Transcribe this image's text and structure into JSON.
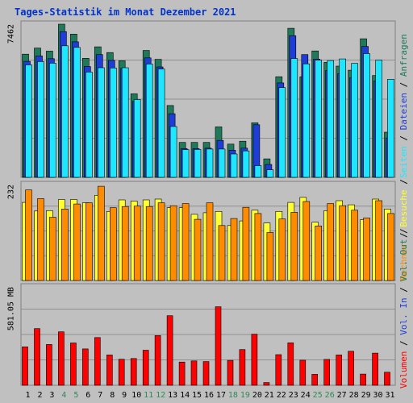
{
  "title": "Tages-Statistik im Monat Dezember 2021",
  "colors": {
    "background": "#c0c0c0",
    "title": "#0033cc",
    "anfragen": "#1f7a5a",
    "dateien": "#1e3dd6",
    "seiten": "#1ee6ff",
    "besuche": "#ffff33",
    "rechner": "#ff8c00",
    "volumen_in": "#ff1a1a",
    "volumen_out": "#ff0000",
    "weekend": "#2e8b57",
    "axis_text": "#000000"
  },
  "chart_data": [
    {
      "type": "bar",
      "panel": "top",
      "ytick_label": "7462",
      "ylim": [
        0,
        7462
      ],
      "grid": true,
      "categories": [
        "1",
        "2",
        "3",
        "4",
        "5",
        "6",
        "7",
        "8",
        "9",
        "10",
        "11",
        "12",
        "13",
        "14",
        "15",
        "16",
        "17",
        "18",
        "19",
        "20",
        "21",
        "22",
        "23",
        "24",
        "25",
        "26",
        "27",
        "28",
        "29",
        "30",
        "31"
      ],
      "series": [
        {
          "name": "Anfragen",
          "values": [
            6000,
            6300,
            6150,
            7462,
            6980,
            5800,
            6360,
            6080,
            5680,
            4070,
            6180,
            5750,
            3500,
            1700,
            1700,
            1700,
            2460,
            1620,
            1760,
            2660,
            900,
            4900,
            7260,
            4900,
            6160,
            5600,
            5420,
            5220,
            6750,
            4960,
            2200
          ]
        },
        {
          "name": "Dateien",
          "values": [
            5650,
            5920,
            5780,
            7100,
            6600,
            5400,
            5980,
            5700,
            5300,
            3700,
            5820,
            5380,
            3100,
            1400,
            1400,
            1420,
            1800,
            1320,
            1420,
            2560,
            630,
            4600,
            6900,
            5980,
            5760,
            5200,
            5050,
            4850,
            6380,
            4700,
            1920
          ]
        },
        {
          "name": "Seiten",
          "values": [
            5480,
            5640,
            5560,
            6410,
            6330,
            5130,
            5340,
            5330,
            5340,
            3790,
            5520,
            5280,
            2480,
            1350,
            1360,
            1380,
            1380,
            1140,
            1290,
            570,
            370,
            4370,
            5790,
            5530,
            5710,
            5690,
            5770,
            5550,
            6030,
            5710,
            4780
          ]
        }
      ]
    },
    {
      "type": "bar",
      "panel": "middle",
      "ytick_label": "232",
      "ylim": [
        0,
        232
      ],
      "grid": true,
      "categories": [
        "1",
        "2",
        "3",
        "4",
        "5",
        "6",
        "7",
        "8",
        "9",
        "10",
        "11",
        "12",
        "13",
        "14",
        "15",
        "16",
        "17",
        "18",
        "19",
        "20",
        "21",
        "22",
        "23",
        "24",
        "25",
        "26",
        "27",
        "28",
        "29",
        "30",
        "31"
      ],
      "series": [
        {
          "name": "Besuche",
          "values": [
            189,
            168,
            169,
            196,
            196,
            188,
            206,
            167,
            195,
            192,
            195,
            197,
            176,
            176,
            160,
            164,
            167,
            133,
            144,
            170,
            139,
            167,
            189,
            201,
            141,
            169,
            193,
            183,
            147,
            197,
            173
          ]
        },
        {
          "name": "Rechner",
          "values": [
            219,
            198,
            153,
            173,
            185,
            188,
            228,
            176,
            179,
            180,
            179,
            188,
            181,
            186,
            148,
            188,
            133,
            150,
            177,
            162,
            116,
            149,
            165,
            191,
            132,
            186,
            181,
            170,
            151,
            193,
            162
          ]
        }
      ]
    },
    {
      "type": "bar",
      "panel": "bottom",
      "ytick_label": "581.05 MB",
      "ylim": [
        0,
        581.05
      ],
      "grid": true,
      "categories": [
        "1",
        "2",
        "3",
        "4",
        "5",
        "6",
        "7",
        "8",
        "9",
        "10",
        "11",
        "12",
        "13",
        "14",
        "15",
        "16",
        "17",
        "18",
        "19",
        "20",
        "21",
        "22",
        "23",
        "24",
        "25",
        "26",
        "27",
        "28",
        "29",
        "30",
        "31"
      ],
      "series": [
        {
          "name": "Vol. In",
          "values": [
            0,
            0,
            0,
            0,
            0,
            0,
            0,
            0,
            0,
            0,
            0,
            0,
            0,
            0,
            0,
            0,
            0,
            0,
            0,
            0,
            0,
            0,
            0,
            0,
            0,
            0,
            0,
            0,
            0,
            0,
            0
          ]
        },
        {
          "name": "Vol. Out",
          "values": [
            227,
            335,
            241,
            316,
            250,
            215,
            282,
            179,
            154,
            158,
            207,
            294,
            411,
            137,
            144,
            140,
            464,
            147,
            211,
            302,
            16,
            181,
            251,
            148,
            65,
            153,
            179,
            201,
            66,
            190,
            77
          ]
        }
      ]
    }
  ],
  "xaxis": {
    "labels": [
      "1",
      "2",
      "3",
      "4",
      "5",
      "6",
      "7",
      "8",
      "9",
      "10",
      "11",
      "12",
      "13",
      "14",
      "15",
      "16",
      "17",
      "18",
      "19",
      "20",
      "21",
      "22",
      "23",
      "24",
      "25",
      "26",
      "27",
      "28",
      "29",
      "30",
      "31"
    ],
    "weekend_days": [
      "4",
      "5",
      "11",
      "12",
      "18",
      "19",
      "25",
      "26"
    ]
  },
  "right_label_top": [
    {
      "text": "Seiten",
      "color_key": "seiten"
    },
    {
      "text": " / ",
      "color_key": "axis_text"
    },
    {
      "text": "Dateien",
      "color_key": "dateien"
    },
    {
      "text": " / ",
      "color_key": "axis_text"
    },
    {
      "text": "Anfragen",
      "color_key": "anfragen"
    }
  ],
  "right_label_mid": [
    {
      "text": "Rechner",
      "color_key": "rechner"
    },
    {
      "text": " / ",
      "color_key": "axis_text"
    },
    {
      "text": "Besuche",
      "color_key": "besuche"
    },
    {
      "text": " / ",
      "color_key": "axis_text"
    }
  ],
  "right_label_bot": [
    {
      "text": "Volumen",
      "color_key": "volumen_out"
    },
    {
      "text": " / ",
      "color_key": "axis_text"
    },
    {
      "text": "Vol. In",
      "color_key": "dateien"
    },
    {
      "text": " / ",
      "color_key": "axis_text"
    },
    {
      "text": "Vol. Out",
      "color_key": "anfragen"
    },
    {
      "text": " / ",
      "color_key": "axis_text"
    }
  ]
}
